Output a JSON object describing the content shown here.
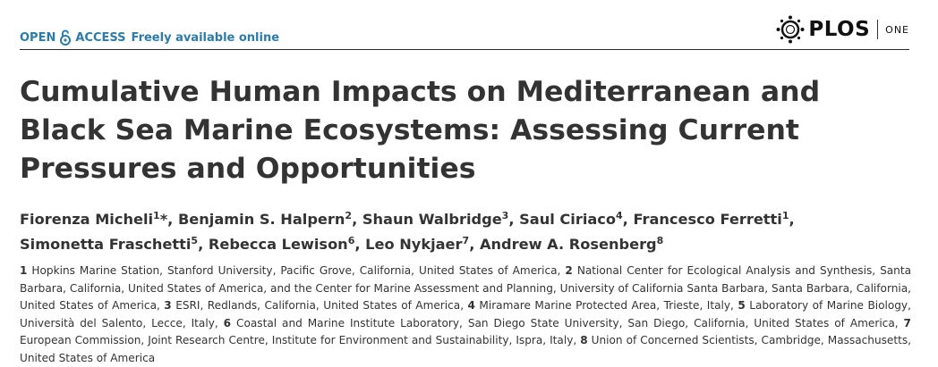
{
  "header": {
    "open_access_a": "OPEN",
    "open_access_b": "ACCESS",
    "freely_available": "Freely available online",
    "publisher": "PLOS",
    "journal": "ONE",
    "accent_color": "#2d7ba8"
  },
  "title": "Cumulative Human Impacts on Mediterranean and Black Sea Marine Ecosystems: Assessing Current Pressures and Opportunities",
  "authors": [
    {
      "name": "Fiorenza Micheli",
      "sup": "1",
      "mark": "*"
    },
    {
      "name": "Benjamin S. Halpern",
      "sup": "2"
    },
    {
      "name": "Shaun Walbridge",
      "sup": "3"
    },
    {
      "name": "Saul Ciriaco",
      "sup": "4"
    },
    {
      "name": "Francesco Ferretti",
      "sup": "1"
    },
    {
      "name": "Simonetta Fraschetti",
      "sup": "5"
    },
    {
      "name": "Rebecca Lewison",
      "sup": "6"
    },
    {
      "name": "Leo Nykjaer",
      "sup": "7"
    },
    {
      "name": "Andrew A. Rosenberg",
      "sup": "8"
    }
  ],
  "affiliations": [
    {
      "num": "1",
      "text": "Hopkins Marine Station, Stanford University, Pacific Grove, California, United States of America,"
    },
    {
      "num": "2",
      "text": "National Center for Ecological Analysis and Synthesis, Santa Barbara, California, United States of America, and the Center for Marine Assessment and Planning, University of California Santa Barbara, Santa Barbara, California, United States of America,"
    },
    {
      "num": "3",
      "text": "ESRI, Redlands, California, United States of America,"
    },
    {
      "num": "4",
      "text": "Miramare Marine Protected Area, Trieste, Italy,"
    },
    {
      "num": "5",
      "text": "Laboratory of Marine Biology, Università del Salento, Lecce, Italy,"
    },
    {
      "num": "6",
      "text": "Coastal and Marine Institute Laboratory, San Diego State University, San Diego, California, United States of America,"
    },
    {
      "num": "7",
      "text": "European Commission, Joint Research Centre, Institute for Environment and Sustainability, Ispra, Italy,"
    },
    {
      "num": "8",
      "text": "Union of Concerned Scientists, Cambridge, Massachusetts, United States of America"
    }
  ]
}
